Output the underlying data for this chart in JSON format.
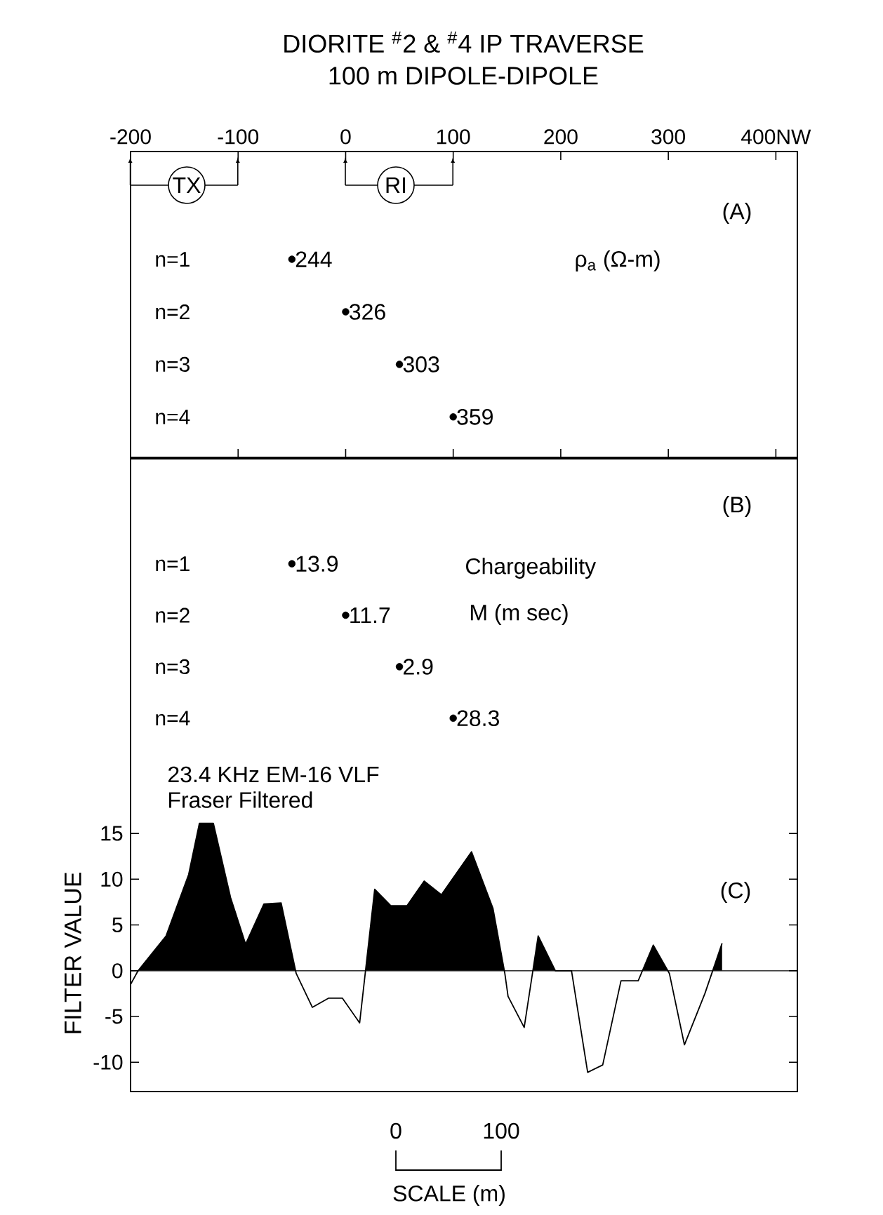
{
  "chart_data": [
    {
      "type": "scatter",
      "title": "DIORITE $^{#}$2 & $^{#}$4 IP TRAVERSE",
      "subtitle": "100 m DIPOLE-DIPOLE",
      "x": [
        -50,
        0,
        50,
        100
      ],
      "values": [
        1,
        2,
        3,
        4
      ],
      "color": "#000000",
      "marker": "circle",
      "xlim": [
        -200,
        420
      ],
      "xticks": [
        -200,
        -100,
        0,
        100,
        200,
        300,
        {
          "value": 400,
          "label": "400NW"
        }
      ],
      "ylim": [
        4.77,
        -1.05
      ],
      "yticks": [
        {
          "value": 1,
          "label": "n=1"
        },
        {
          "value": 2,
          "label": "n=2"
        },
        {
          "value": 3,
          "label": "n=3"
        },
        {
          "value": 4,
          "label": "n=4"
        }
      ],
      "annotations": [
        "TX",
        "RI",
        "(A)",
        "ρ$_{a}$ (Ω-m)",
        {
          "text": "244",
          "x": -50,
          "y": 1
        },
        {
          "text": "326",
          "x": 0,
          "y": 2
        },
        {
          "text": "303",
          "x": 50,
          "y": 3
        },
        {
          "text": "359",
          "x": 100,
          "y": 4
        }
      ]
    },
    {
      "type": "scatter",
      "x": [
        -50,
        0,
        50,
        100
      ],
      "values": [
        1,
        2,
        3,
        4
      ],
      "color": "#000000",
      "marker": "circle",
      "xlim": [
        -200,
        420
      ],
      "ylim": [
        4.93,
        -1.04
      ],
      "yticks": [
        {
          "value": 1,
          "label": "n=1"
        },
        {
          "value": 2,
          "label": "n=2"
        },
        {
          "value": 3,
          "label": "n=3"
        },
        {
          "value": 4,
          "label": "n=4"
        }
      ],
      "tick_labels": "y",
      "annotations": [
        "(B)",
        "Chargeability",
        "M (m sec)",
        {
          "text": "13.9",
          "x": -50,
          "y": 1
        },
        {
          "text": "11.7",
          "x": 0,
          "y": 2
        },
        {
          "text": "2.9",
          "x": 50,
          "y": 3
        },
        {
          "text": "28.3",
          "x": 100,
          "y": 4
        }
      ]
    },
    {
      "type": "area",
      "ylabel": "FILTER VALUE",
      "x": [
        -200,
        -193,
        -167,
        -146,
        -136,
        -123,
        -107,
        -93,
        -76,
        -60,
        -46,
        -31,
        -16,
        -3,
        13,
        27,
        42,
        57,
        73,
        89,
        117,
        137,
        148,
        151,
        166,
        179,
        195,
        210,
        225,
        239,
        256,
        272,
        286,
        301,
        315,
        334,
        350
      ],
      "values": [
        -1.5,
        0,
        3.8,
        10.5,
        16.1,
        16.1,
        8,
        2.9,
        7.3,
        7.4,
        -0.3,
        -4,
        -3,
        -3,
        -5.7,
        8.9,
        7.1,
        7.1,
        9.8,
        8.3,
        13,
        6.8,
        -0.3,
        -2.8,
        -6.2,
        3.8,
        0,
        0,
        -11.1,
        -10.3,
        -1.1,
        -1.1,
        2.8,
        -0.3,
        -8.1,
        -2.5,
        3
      ],
      "color": "#000000",
      "xlim": [
        -200,
        420
      ],
      "ylim": [
        -13.2,
        17
      ],
      "yticks": [
        -10,
        -5,
        0,
        5,
        10,
        15
      ],
      "tick_labels": "y",
      "ref_lines": [
        {
          "axis": "y",
          "value": 0
        }
      ],
      "annotations": [
        "23.4 KHz EM-16 VLF",
        "Fraser Filtered",
        "(C)",
        "0",
        "100",
        "SCALE (m)"
      ]
    }
  ]
}
